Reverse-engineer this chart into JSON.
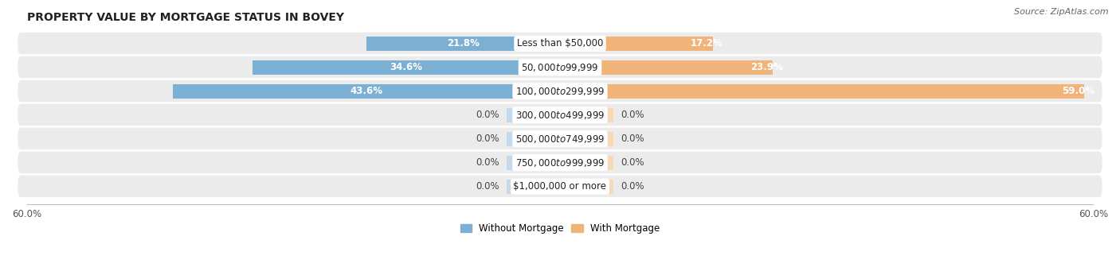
{
  "title": "PROPERTY VALUE BY MORTGAGE STATUS IN BOVEY",
  "source": "Source: ZipAtlas.com",
  "categories": [
    "Less than $50,000",
    "$50,000 to $99,999",
    "$100,000 to $299,999",
    "$300,000 to $499,999",
    "$500,000 to $749,999",
    "$750,000 to $999,999",
    "$1,000,000 or more"
  ],
  "without_mortgage": [
    21.8,
    34.6,
    43.6,
    0.0,
    0.0,
    0.0,
    0.0
  ],
  "with_mortgage": [
    17.2,
    23.9,
    59.0,
    0.0,
    0.0,
    0.0,
    0.0
  ],
  "color_without": "#7BAFD4",
  "color_with": "#F0B47A",
  "color_without_light": "#C5D9EB",
  "color_with_light": "#F7D9B8",
  "bg_row_color": "#EBEBEB",
  "bg_row_color_alt": "#F5F5F5",
  "x_max": 60.0,
  "zero_bar_width": 6.0,
  "legend_without": "Without Mortgage",
  "legend_with": "With Mortgage",
  "title_fontsize": 10,
  "source_fontsize": 8,
  "label_fontsize": 8.5,
  "cat_fontsize": 8.5
}
